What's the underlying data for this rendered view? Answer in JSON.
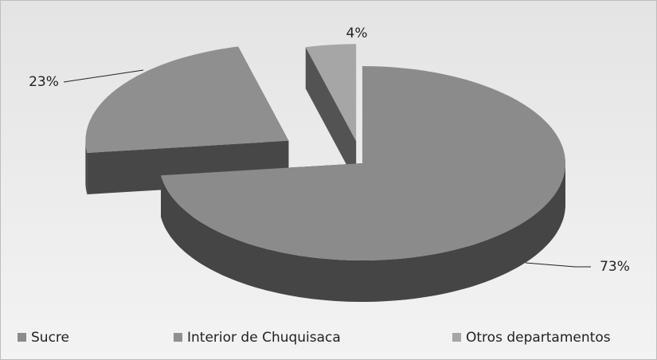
{
  "chart_data": {
    "type": "pie3d",
    "categories": [
      "Sucre",
      "Interior de Chuquisaca",
      "Otros departamentos"
    ],
    "values": [
      73,
      23,
      4
    ],
    "value_labels": [
      "73%",
      "23%",
      "4%"
    ],
    "colors": [
      "#8b8b8b",
      "#8f8f8f",
      "#a6a6a6"
    ],
    "legend": "bottom"
  }
}
